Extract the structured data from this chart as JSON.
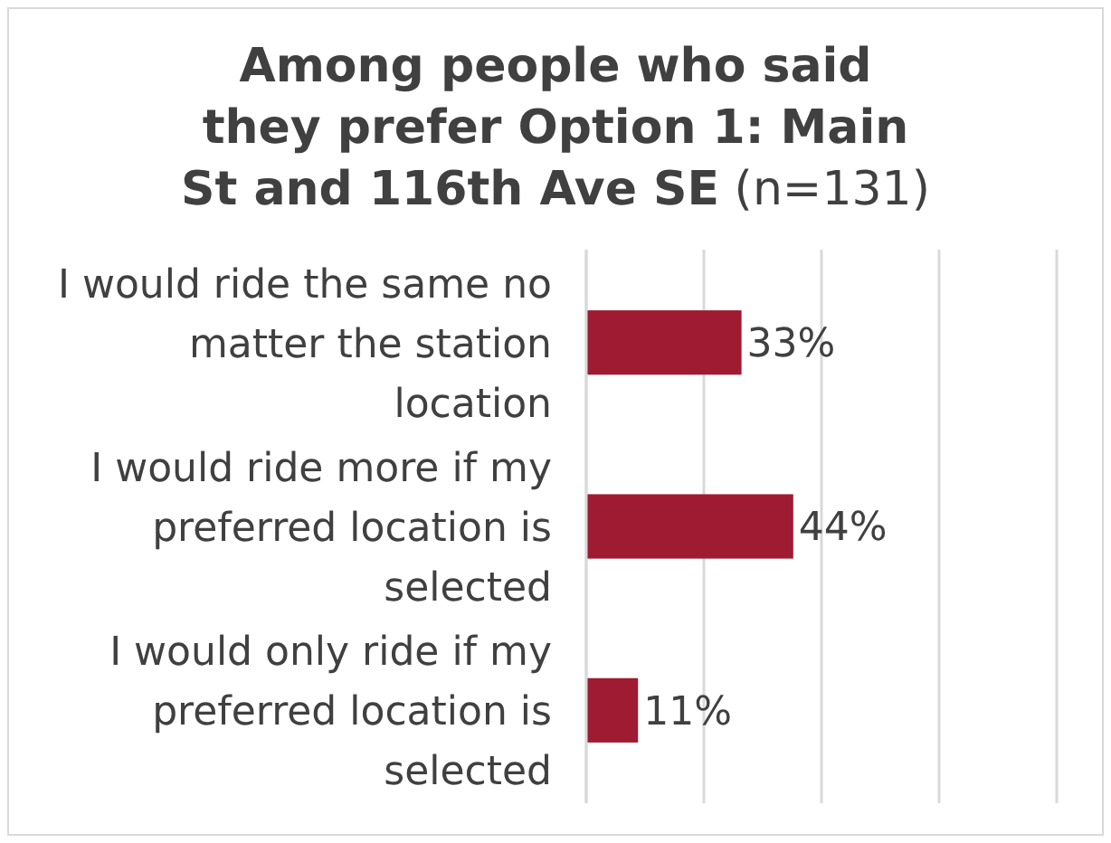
{
  "chart_data": {
    "type": "bar",
    "orientation": "horizontal",
    "title": "Among people who said they prefer Option 1: Main St and 116th Ave SE",
    "subtitle": "(n=131)",
    "categories": [
      "I would ride the same no matter the station location",
      "I would ride more if my preferred location is selected",
      "I would only ride if my preferred location is selected"
    ],
    "values": [
      33,
      44,
      11
    ],
    "value_labels": [
      "33%",
      "44%",
      "11%"
    ],
    "color": "#9e1b32",
    "xlim": [
      0,
      100
    ],
    "xticks": [
      {
        "value": 0,
        "label": null
      },
      {
        "value": 25,
        "label": null
      },
      {
        "value": 50,
        "label": null
      },
      {
        "value": 75,
        "label": null
      },
      {
        "value": 100,
        "label": null
      }
    ],
    "grid": "x",
    "tick_labels": "y"
  }
}
